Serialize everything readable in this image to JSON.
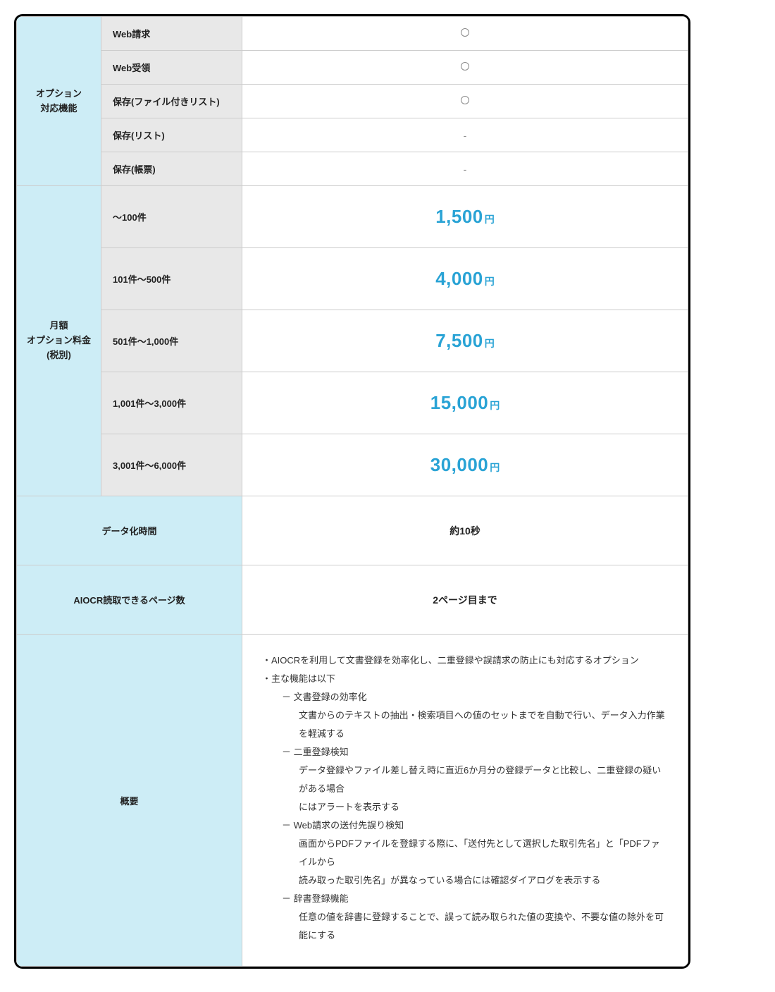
{
  "colors": {
    "blue_header_bg": "#cdedf6",
    "gray_label_bg": "#e8e8e8",
    "price_color": "#29a3d5",
    "border_color": "#cccccc",
    "outer_border": "#000000"
  },
  "section_option": {
    "group_line1": "オプション",
    "group_line2": "対応機能",
    "rows": [
      {
        "label": "Web請求",
        "value": "circle"
      },
      {
        "label": "Web受領",
        "value": "circle"
      },
      {
        "label": "保存(ファイル付きリスト)",
        "value": "circle"
      },
      {
        "label": "保存(リスト)",
        "value": "dash"
      },
      {
        "label": "保存(帳票)",
        "value": "dash"
      }
    ]
  },
  "section_price": {
    "group_line1": "月額",
    "group_line2": "オプション料金",
    "group_line3": "(税別)",
    "yen_suffix": "円",
    "rows": [
      {
        "label": "～100件",
        "price": "1,500"
      },
      {
        "label": "101件～500件",
        "price": "4,000"
      },
      {
        "label": "501件～1,000件",
        "price": "7,500"
      },
      {
        "label": "1,001件～3,000件",
        "price": "15,000"
      },
      {
        "label": "3,001件～6,000件",
        "price": "30,000"
      }
    ]
  },
  "section_info": [
    {
      "header": "データ化時間",
      "value": "約10秒"
    },
    {
      "header": "AIOCR読取できるページ数",
      "value": "2ページ目まで"
    }
  ],
  "section_overview": {
    "header": "概要",
    "lines": [
      {
        "cls": "bullet-line",
        "text": "・AIOCRを利用して文書登録を効率化し、二重登録や誤請求の防止にも対応するオプション"
      },
      {
        "cls": "bullet-line",
        "text": "・主な機能は以下"
      },
      {
        "cls": "sub-line",
        "text": "－ 文書登録の効率化"
      },
      {
        "cls": "sub-desc",
        "text": "文書からのテキストの抽出・検索項目への値のセットまでを自動で行い、データ入力作業を軽減する"
      },
      {
        "cls": "sub-line",
        "text": "－ 二重登録検知"
      },
      {
        "cls": "sub-desc",
        "text": "データ登録やファイル差し替え時に直近6か月分の登録データと比較し、二重登録の疑いがある場合"
      },
      {
        "cls": "sub-desc",
        "text": "にはアラートを表示する"
      },
      {
        "cls": "sub-line",
        "text": "－ Web請求の送付先誤り検知"
      },
      {
        "cls": "sub-desc",
        "text": "画面からPDFファイルを登録する際に、「送付先として選択した取引先名」と「PDFファイルから"
      },
      {
        "cls": "sub-desc",
        "text": "読み取った取引先名」が異なっている場合には確認ダイアログを表示する"
      },
      {
        "cls": "sub-line",
        "text": "－ 辞書登録機能"
      },
      {
        "cls": "sub-desc",
        "text": "任意の値を辞書に登録することで、誤って読み取られた値の変換や、不要な値の除外を可能にする"
      }
    ]
  }
}
